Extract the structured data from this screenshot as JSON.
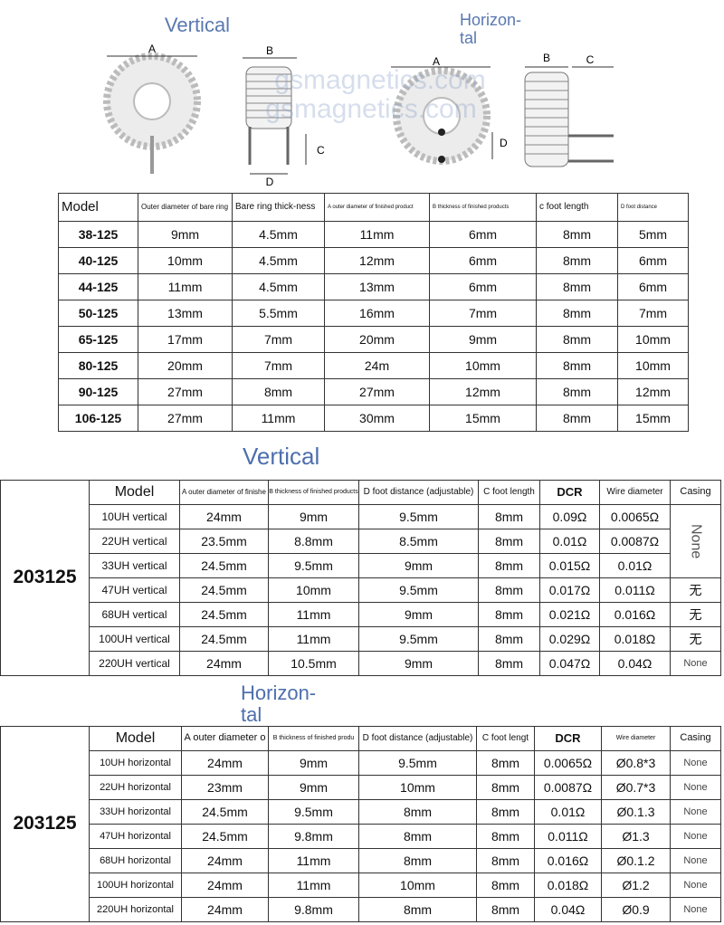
{
  "diagram": {
    "vertical_title": "Vertical",
    "horizontal_title": [
      "Horizon-",
      "tal"
    ],
    "watermark": [
      "gsmagnetics.com",
      "gsmagnetics.com"
    ],
    "vertical_labels": [
      "A",
      "B",
      "C",
      "D"
    ],
    "horizontal_labels": [
      "A",
      "D",
      "B",
      "C"
    ]
  },
  "table": {
    "header": [
      "Model",
      "Outer diameter of bare ring",
      "Bare ring thick-ness",
      "A outer diameter of finished product",
      "B thickness of finished products",
      "c foot length",
      "D foot distance"
    ],
    "rows": [
      [
        "38-125",
        "9mm",
        "4.5mm",
        "11mm",
        "6mm",
        "8mm",
        "5mm"
      ],
      [
        "40-125",
        "10mm",
        "4.5mm",
        "12mm",
        "6mm",
        "8mm",
        "6mm"
      ],
      [
        "44-125",
        "11mm",
        "4.5mm",
        "13mm",
        "6mm",
        "8mm",
        "6mm"
      ],
      [
        "50-125",
        "13mm",
        "5.5mm",
        "16mm",
        "7mm",
        "8mm",
        "7mm"
      ],
      [
        "65-125",
        "17mm",
        "7mm",
        "20mm",
        "9mm",
        "8mm",
        "10mm"
      ],
      [
        "80-125",
        "20mm",
        "7mm",
        "24m",
        "10mm",
        "8mm",
        "10mm"
      ],
      [
        "90-125",
        "27mm",
        "8mm",
        "27mm",
        "12mm",
        "8mm",
        "12mm"
      ],
      [
        "106-125",
        "27mm",
        "11mm",
        "30mm",
        "15mm",
        "8mm",
        "15mm"
      ]
    ]
  },
  "vertical_table": {
    "title": [
      "Vertical"
    ],
    "side_label": "203125",
    "header": [
      "Model",
      "A outer diameter of finishe",
      "B thickness of finished products",
      "D foot distance (adjustable)",
      "C foot length",
      "DCR",
      "Wire diameter",
      "Casing"
    ],
    "rows": [
      [
        "10UH vertical",
        "24mm",
        "9mm",
        "9.5mm",
        "8mm",
        "0.09Ω",
        "0.0065Ω",
        "None"
      ],
      [
        "22UH vertical",
        "23.5mm",
        "8.8mm",
        "8.5mm",
        "8mm",
        "0.01Ω",
        "0.0087Ω",
        null
      ],
      [
        "33UH vertical",
        "24.5mm",
        "9.5mm",
        "9mm",
        "8mm",
        "0.015Ω",
        "0.01Ω",
        null
      ],
      [
        "47UH vertical",
        "24.5mm",
        "10mm",
        "9.5mm",
        "8mm",
        "0.017Ω",
        "0.011Ω",
        "无"
      ],
      [
        "68UH vertical",
        "24.5mm",
        "11mm",
        "9mm",
        "8mm",
        "0.021Ω",
        "0.016Ω",
        "无"
      ],
      [
        "100UH vertical",
        "24.5mm",
        "11mm",
        "9.5mm",
        "8mm",
        "0.029Ω",
        "0.018Ω",
        "无"
      ],
      [
        "220UH vertical",
        "24mm",
        "10.5mm",
        "9mm",
        "8mm",
        "0.047Ω",
        "0.04Ω",
        "None"
      ]
    ]
  },
  "horizontal_table": {
    "title": [
      "Horizon-",
      "tal"
    ],
    "side_label": "203125",
    "header": [
      "Model",
      "A outer diameter o",
      "B thickness of finished produ",
      "D foot distance (adjustable)",
      "C foot lengt",
      "DCR",
      "Wire diameter",
      "Casing"
    ],
    "rows": [
      [
        "10UH horizontal",
        "24mm",
        "9mm",
        "9.5mm",
        "8mm",
        "0.0065Ω",
        "Ø0.8*3",
        "None"
      ],
      [
        "22UH horizontal",
        "23mm",
        "9mm",
        "10mm",
        "8mm",
        "0.0087Ω",
        "Ø0.7*3",
        "None"
      ],
      [
        "33UH horizontal",
        "24.5mm",
        "9.5mm",
        "8mm",
        "8mm",
        "0.01Ω",
        "Ø0.1.3",
        "None"
      ],
      [
        "47UH horizontal",
        "24.5mm",
        "9.8mm",
        "8mm",
        "8mm",
        "0.011Ω",
        "Ø1.3",
        "None"
      ],
      [
        "68UH horizontal",
        "24mm",
        "11mm",
        "8mm",
        "8mm",
        "0.016Ω",
        "Ø0.1.2",
        "None"
      ],
      [
        "100UH horizontal",
        "24mm",
        "11mm",
        "10mm",
        "8mm",
        "0.018Ω",
        "Ø1.2",
        "None"
      ],
      [
        "220UH horizontal",
        "24mm",
        "9.8mm",
        "8mm",
        "8mm",
        "0.04Ω",
        "Ø0.9",
        "None"
      ]
    ]
  }
}
